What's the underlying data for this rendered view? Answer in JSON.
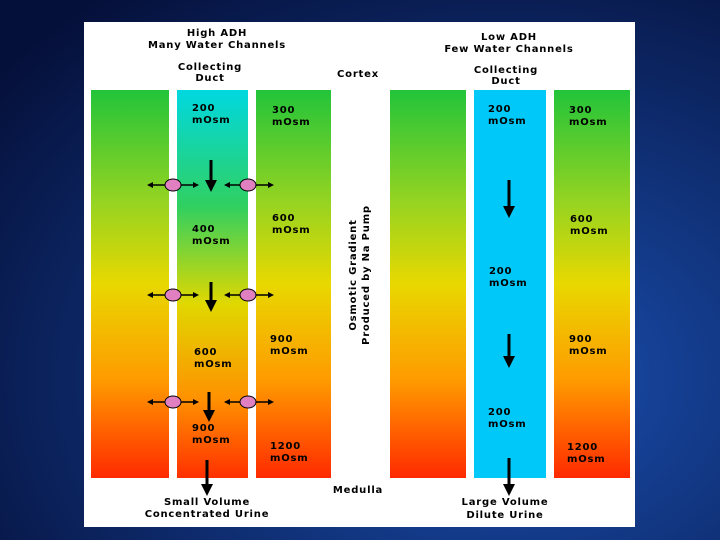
{
  "cortex": "Cortex",
  "medulla": "Medulla",
  "gradient_label": [
    "Osmotic Gradient",
    "Produced by Na Pump"
  ],
  "high_adh": {
    "title": [
      "High ADH",
      "Many Water Channels"
    ],
    "duct_label": [
      "Collecting",
      "Duct"
    ],
    "duct": [
      [
        "200",
        "mOsm"
      ],
      [
        "400",
        "mOsm"
      ],
      [
        "600",
        "mOsm"
      ],
      [
        "900",
        "mOsm"
      ]
    ],
    "interstitium": [
      [
        "300",
        "mOsm"
      ],
      [
        "600",
        "mOsm"
      ],
      [
        "900",
        "mOsm"
      ],
      [
        "1200",
        "mOsm"
      ]
    ],
    "outcome": [
      "Small Volume",
      "Concentrated Urine"
    ]
  },
  "low_adh": {
    "title": [
      "Low ADH",
      "Few Water Channels"
    ],
    "duct_label": [
      "Collecting",
      "Duct"
    ],
    "duct": [
      [
        "200",
        "mOsm"
      ],
      [
        "200",
        "mOsm"
      ],
      [
        "200",
        "mOsm"
      ]
    ],
    "interstitium": [
      [
        "300",
        "mOsm"
      ],
      [
        "600",
        "mOsm"
      ],
      [
        "900",
        "mOsm"
      ],
      [
        "1200",
        "mOsm"
      ]
    ],
    "outcome": [
      "Large Volume",
      "Dilute Urine"
    ]
  }
}
